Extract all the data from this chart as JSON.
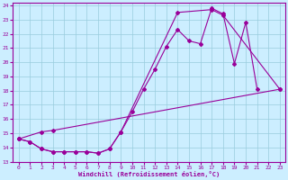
{
  "xlabel": "Windchill (Refroidissement éolien,°C)",
  "bg_color": "#cceeff",
  "grid_color": "#99ccdd",
  "line_color": "#990099",
  "xlim": [
    -0.5,
    23.5
  ],
  "ylim": [
    13,
    24.2
  ],
  "xticks": [
    0,
    1,
    2,
    3,
    4,
    5,
    6,
    7,
    8,
    9,
    10,
    11,
    12,
    13,
    14,
    15,
    16,
    17,
    18,
    19,
    20,
    21,
    22,
    23
  ],
  "yticks": [
    13,
    14,
    15,
    16,
    17,
    18,
    19,
    20,
    21,
    22,
    23,
    24
  ],
  "line1_x": [
    0,
    1,
    2,
    3,
    4,
    5,
    6,
    7,
    8,
    9,
    10,
    11,
    12,
    13,
    14,
    15,
    16,
    17,
    18,
    19,
    20,
    21
  ],
  "line1_y": [
    14.6,
    14.4,
    13.9,
    13.7,
    13.7,
    13.7,
    13.7,
    13.6,
    13.9,
    15.1,
    16.5,
    18.1,
    19.5,
    21.1,
    22.3,
    21.5,
    21.3,
    23.8,
    23.4,
    19.9,
    22.8,
    18.1
  ],
  "line2_x": [
    0,
    1,
    2,
    3,
    4,
    5,
    6,
    7,
    8,
    9,
    14,
    17,
    18,
    23
  ],
  "line2_y": [
    14.6,
    14.4,
    13.9,
    13.7,
    13.7,
    13.7,
    13.7,
    13.6,
    13.9,
    15.1,
    23.5,
    23.7,
    23.3,
    18.1
  ],
  "line3_x": [
    0,
    2,
    3,
    23
  ],
  "line3_y": [
    14.6,
    15.1,
    15.2,
    18.1
  ]
}
